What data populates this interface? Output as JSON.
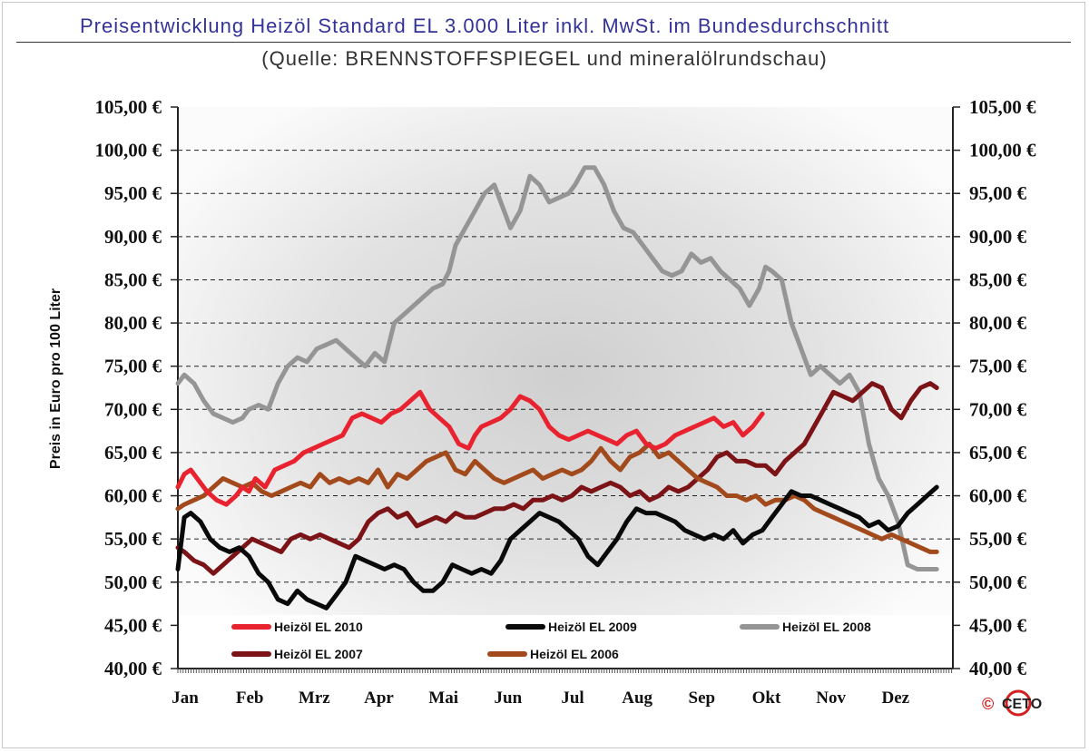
{
  "header": {
    "title": "Preisentwicklung Heizöl Standard EL 3.000 Liter inkl. MwSt. im  Bundesdurchschnitt",
    "subtitle": "(Quelle: BRENNSTOFFSPIEGEL und mineralölrundschau)"
  },
  "copyright": {
    "symbol": "©",
    "logo_text": "CETO"
  },
  "chart_data": {
    "type": "line",
    "title": "Preisentwicklung Heizöl Standard EL 3.000 Liter inkl. MwSt. im  Bundesdurchschnitt",
    "subtitle": "(Quelle: BRENNSTOFFSPIEGEL und mineralölrundschau)",
    "ylabel": "Preis in Euro pro 100 Liter",
    "xlabel": "",
    "ylim": [
      40,
      105
    ],
    "y_ticks": [
      "40,00 €",
      "45,00 €",
      "50,00 €",
      "55,00 €",
      "60,00 €",
      "65,00 €",
      "70,00 €",
      "75,00 €",
      "80,00 €",
      "85,00 €",
      "90,00 €",
      "95,00 €",
      "100,00 €",
      "105,00 €"
    ],
    "y_tick_values": [
      40,
      45,
      50,
      55,
      60,
      65,
      70,
      75,
      80,
      85,
      90,
      95,
      100,
      105
    ],
    "x_ticks": [
      "Jan",
      "Feb",
      "Mrz",
      "Apr",
      "Mai",
      "Jun",
      "Jul",
      "Aug",
      "Sep",
      "Okt",
      "Nov",
      "Dez"
    ],
    "xlim": [
      0,
      12
    ],
    "grid": "dashed horizontal",
    "secondary_y_axis": true,
    "legend_position": "bottom inside plot",
    "series": [
      {
        "name": "Heizöl EL 2010",
        "color": "#e8232f",
        "x": [
          0,
          0.1,
          0.2,
          0.3,
          0.45,
          0.6,
          0.75,
          0.9,
          1.0,
          1.1,
          1.2,
          1.35,
          1.5,
          1.65,
          1.8,
          1.95,
          2.1,
          2.25,
          2.4,
          2.55,
          2.7,
          2.85,
          3.0,
          3.15,
          3.3,
          3.45,
          3.6,
          3.75,
          3.9,
          4.05,
          4.2,
          4.35,
          4.5,
          4.6,
          4.7,
          4.85,
          5.0,
          5.15,
          5.3,
          5.45,
          5.6,
          5.75,
          5.9,
          6.05,
          6.2,
          6.35,
          6.5,
          6.65,
          6.8,
          6.95,
          7.1,
          7.25,
          7.4,
          7.55,
          7.7,
          7.85,
          8.0,
          8.15,
          8.3,
          8.45,
          8.6,
          8.75,
          8.9,
          9.05
        ],
        "values": [
          61,
          62.5,
          63,
          62,
          60.5,
          59.5,
          59,
          60,
          61,
          60.5,
          62,
          61,
          63,
          63.5,
          64,
          65,
          65.5,
          66,
          66.5,
          67,
          69,
          69.5,
          69,
          68.5,
          69.5,
          70,
          71,
          72,
          70,
          69,
          68,
          66,
          65.5,
          67,
          68,
          68.5,
          69,
          70,
          71.5,
          71,
          70,
          68,
          67,
          66.5,
          67,
          67.5,
          67,
          66.5,
          66,
          67,
          67.5,
          66,
          65.5,
          66,
          67,
          67.5,
          68,
          68.5,
          69,
          68,
          68.5,
          67,
          68,
          69.5
        ]
      },
      {
        "name": "Heizöl EL 2009",
        "color": "#0a0a0a",
        "x": [
          0,
          0.1,
          0.2,
          0.35,
          0.5,
          0.65,
          0.8,
          0.95,
          1.1,
          1.25,
          1.4,
          1.55,
          1.7,
          1.85,
          2.0,
          2.15,
          2.3,
          2.45,
          2.6,
          2.75,
          2.9,
          3.05,
          3.2,
          3.35,
          3.5,
          3.65,
          3.8,
          3.95,
          4.1,
          4.25,
          4.4,
          4.55,
          4.7,
          4.85,
          5.0,
          5.15,
          5.3,
          5.45,
          5.6,
          5.75,
          5.9,
          6.05,
          6.2,
          6.35,
          6.5,
          6.65,
          6.8,
          6.95,
          7.1,
          7.25,
          7.4,
          7.55,
          7.7,
          7.85,
          8.0,
          8.15,
          8.3,
          8.45,
          8.6,
          8.75,
          8.9,
          9.05,
          9.2,
          9.35,
          9.5,
          9.65,
          9.8,
          9.95,
          10.1,
          10.25,
          10.4,
          10.55,
          10.7,
          10.85,
          11.0,
          11.15,
          11.3,
          11.45,
          11.6,
          11.75
        ],
        "values": [
          51.5,
          57.5,
          58,
          57,
          55,
          54,
          53.5,
          54,
          53,
          51,
          50,
          48,
          47.5,
          49,
          48,
          47.5,
          47,
          48.5,
          50,
          53,
          52.5,
          52,
          51.5,
          52,
          51.5,
          50,
          49,
          49,
          50,
          52,
          51.5,
          51,
          51.5,
          51,
          52.5,
          55,
          56,
          57,
          58,
          57.5,
          57,
          56,
          55,
          53,
          52,
          53.5,
          55,
          57,
          58.5,
          58,
          58,
          57.5,
          57,
          56,
          55.5,
          55,
          55.5,
          55,
          56,
          54.5,
          55.5,
          56,
          57.5,
          59,
          60.5,
          60,
          60,
          59.5,
          59,
          58.5,
          58,
          57.5,
          56.5,
          57,
          56,
          56.5,
          58,
          59,
          60,
          61
        ]
      },
      {
        "name": "Heizöl EL 2008",
        "color": "#959595",
        "x": [
          0,
          0.1,
          0.25,
          0.4,
          0.55,
          0.7,
          0.85,
          1.0,
          1.1,
          1.25,
          1.4,
          1.55,
          1.7,
          1.85,
          2.0,
          2.15,
          2.3,
          2.45,
          2.6,
          2.75,
          2.9,
          3.05,
          3.2,
          3.35,
          3.5,
          3.65,
          3.8,
          3.95,
          4.1,
          4.2,
          4.3,
          4.45,
          4.6,
          4.75,
          4.9,
          5.0,
          5.15,
          5.3,
          5.45,
          5.6,
          5.75,
          5.9,
          6.05,
          6.15,
          6.3,
          6.45,
          6.6,
          6.75,
          6.9,
          7.05,
          7.2,
          7.35,
          7.5,
          7.65,
          7.8,
          7.95,
          8.1,
          8.25,
          8.4,
          8.55,
          8.7,
          8.85,
          9.0,
          9.1,
          9.2,
          9.35,
          9.5,
          9.65,
          9.8,
          9.95,
          10.1,
          10.25,
          10.4,
          10.55,
          10.7,
          10.85,
          11.0,
          11.15,
          11.3,
          11.45,
          11.6,
          11.75
        ],
        "values": [
          73,
          74,
          73,
          71,
          69.5,
          69,
          68.5,
          69,
          70,
          70.5,
          70,
          73,
          75,
          76,
          75.5,
          77,
          77.5,
          78,
          77,
          76,
          75,
          76.5,
          75.5,
          80,
          81,
          82,
          83,
          84,
          84.5,
          86,
          89,
          91,
          93,
          95,
          96,
          94,
          91,
          93,
          97,
          96,
          94,
          94.5,
          95,
          96,
          98,
          98,
          96,
          93,
          91,
          90.5,
          89,
          87.5,
          86,
          85.5,
          86,
          88,
          87,
          87.5,
          86,
          85,
          84,
          82,
          84,
          86.5,
          86,
          85,
          80,
          77,
          74,
          75,
          74,
          73,
          74,
          72,
          66,
          62,
          60,
          57,
          52,
          51.5,
          51.5,
          51.5
        ]
      },
      {
        "name": "Heizöl EL 2007",
        "color": "#7b1317",
        "x": [
          0,
          0.1,
          0.25,
          0.4,
          0.55,
          0.7,
          0.85,
          1.0,
          1.15,
          1.3,
          1.45,
          1.6,
          1.75,
          1.9,
          2.05,
          2.2,
          2.35,
          2.5,
          2.65,
          2.8,
          2.95,
          3.1,
          3.25,
          3.4,
          3.55,
          3.7,
          3.85,
          4.0,
          4.15,
          4.3,
          4.45,
          4.6,
          4.75,
          4.9,
          5.05,
          5.2,
          5.35,
          5.5,
          5.65,
          5.8,
          5.95,
          6.1,
          6.25,
          6.4,
          6.55,
          6.7,
          6.85,
          7.0,
          7.15,
          7.3,
          7.45,
          7.6,
          7.75,
          7.9,
          8.05,
          8.2,
          8.35,
          8.5,
          8.65,
          8.8,
          8.95,
          9.1,
          9.25,
          9.4,
          9.55,
          9.7,
          9.85,
          10.0,
          10.15,
          10.3,
          10.45,
          10.6,
          10.75,
          10.9,
          11.05,
          11.2,
          11.35,
          11.5,
          11.65,
          11.75
        ],
        "values": [
          54,
          53.5,
          52.5,
          52,
          51,
          52,
          53,
          54,
          55,
          54.5,
          54,
          53.5,
          55,
          55.5,
          55,
          55.5,
          55,
          54.5,
          54,
          55,
          57,
          58,
          58.5,
          57.5,
          58,
          56.5,
          57,
          57.5,
          57,
          58,
          57.5,
          57.5,
          58,
          58.5,
          58.5,
          59,
          58.5,
          59.5,
          59.5,
          60,
          59.5,
          60,
          61,
          60.5,
          61,
          61.5,
          61,
          60,
          60.5,
          59.5,
          60,
          61,
          60.5,
          61,
          62,
          63,
          64.5,
          65,
          64,
          64,
          63.5,
          63.5,
          62.5,
          64,
          65,
          66,
          68,
          70,
          72,
          71.5,
          71,
          72,
          73,
          72.5,
          70,
          69,
          71,
          72.5,
          73,
          72.5
        ]
      },
      {
        "name": "Heizöl EL 2006",
        "color": "#a24a1c",
        "x": [
          0,
          0.1,
          0.25,
          0.4,
          0.55,
          0.7,
          0.85,
          1.0,
          1.15,
          1.3,
          1.45,
          1.6,
          1.75,
          1.9,
          2.05,
          2.2,
          2.35,
          2.5,
          2.65,
          2.8,
          2.95,
          3.1,
          3.25,
          3.4,
          3.55,
          3.7,
          3.85,
          4.0,
          4.15,
          4.3,
          4.45,
          4.6,
          4.75,
          4.9,
          5.05,
          5.2,
          5.35,
          5.5,
          5.65,
          5.8,
          5.95,
          6.1,
          6.25,
          6.4,
          6.55,
          6.7,
          6.85,
          7.0,
          7.15,
          7.3,
          7.45,
          7.6,
          7.75,
          7.9,
          8.05,
          8.2,
          8.35,
          8.5,
          8.65,
          8.8,
          8.95,
          9.1,
          9.25,
          9.4,
          9.55,
          9.7,
          9.85,
          10.0,
          10.15,
          10.3,
          10.45,
          10.6,
          10.75,
          10.9,
          11.05,
          11.2,
          11.35,
          11.5,
          11.65,
          11.75
        ],
        "values": [
          58.5,
          59,
          59.5,
          60,
          61,
          62,
          61.5,
          61,
          61.5,
          60.5,
          60,
          60.5,
          61,
          61.5,
          61,
          62.5,
          61.5,
          62,
          61.5,
          62,
          61.5,
          63,
          61,
          62.5,
          62,
          63,
          64,
          64.5,
          65,
          63,
          62.5,
          64,
          63,
          62,
          61.5,
          62,
          62.5,
          63,
          62,
          62.5,
          63,
          62.5,
          63,
          64,
          65.5,
          64,
          63,
          64.5,
          65,
          66,
          64.5,
          65,
          64,
          63,
          62,
          61.5,
          61,
          60,
          60,
          59.5,
          60,
          59,
          59.5,
          59.5,
          60,
          59.5,
          58.5,
          58,
          57.5,
          57,
          56.5,
          56,
          55.5,
          55,
          55.5,
          55,
          54.5,
          54,
          53.5,
          53.5
        ]
      }
    ]
  }
}
